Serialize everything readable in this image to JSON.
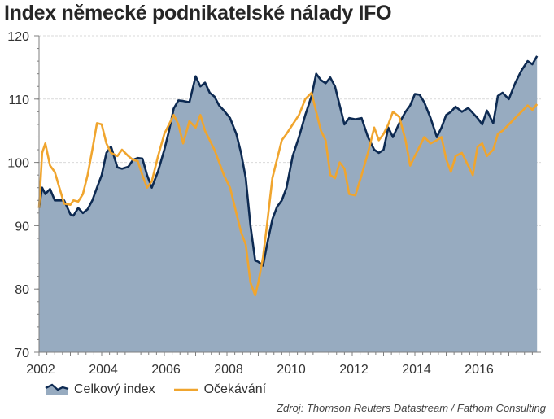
{
  "title": "Index německé podnikatelské nálady IFO",
  "source": "Zdroj: Thomson Reuters Datastream / Fathom Consulting",
  "colors": {
    "area_fill": "#97abc0",
    "total_line": "#0d2a52",
    "expect_line": "#f0a52e",
    "grid": "#d9d9d9",
    "axis": "#7f7f7f"
  },
  "legend": {
    "total": "Celkový index",
    "expect": "Očekávání"
  },
  "chart_data": {
    "type": "line",
    "title": "Index německé podnikatelské nálady IFO",
    "xlabel": "",
    "ylabel": "",
    "ylim": [
      70,
      120
    ],
    "xlim": [
      2002,
      2017.9
    ],
    "yticks": [
      70,
      80,
      90,
      100,
      110,
      120
    ],
    "xticks": [
      2002,
      2004,
      2006,
      2008,
      2010,
      2012,
      2014,
      2016
    ],
    "grid": true,
    "legend_position": "bottom-left",
    "x": [
      2002.0,
      2002.1,
      2002.2,
      2002.35,
      2002.5,
      2002.65,
      2002.8,
      2003.0,
      2003.1,
      2003.25,
      2003.4,
      2003.55,
      2003.7,
      2003.85,
      2004.0,
      2004.15,
      2004.3,
      2004.5,
      2004.65,
      2004.85,
      2005.0,
      2005.15,
      2005.3,
      2005.45,
      2005.6,
      2005.8,
      2006.0,
      2006.15,
      2006.3,
      2006.45,
      2006.6,
      2006.8,
      2007.0,
      2007.15,
      2007.3,
      2007.45,
      2007.6,
      2007.75,
      2007.9,
      2008.1,
      2008.3,
      2008.45,
      2008.6,
      2008.75,
      2008.9,
      2009.0,
      2009.15,
      2009.3,
      2009.45,
      2009.6,
      2009.75,
      2009.9,
      2010.1,
      2010.3,
      2010.5,
      2010.7,
      2010.85,
      2011.0,
      2011.15,
      2011.3,
      2011.45,
      2011.6,
      2011.75,
      2011.9,
      2012.1,
      2012.3,
      2012.5,
      2012.7,
      2012.85,
      2013.0,
      2013.15,
      2013.3,
      2013.5,
      2013.7,
      2013.85,
      2014.0,
      2014.15,
      2014.3,
      2014.5,
      2014.7,
      2014.85,
      2015.0,
      2015.15,
      2015.3,
      2015.5,
      2015.7,
      2015.85,
      2016.0,
      2016.15,
      2016.3,
      2016.5,
      2016.65,
      2016.8,
      2017.0,
      2017.2,
      2017.4,
      2017.6,
      2017.75,
      2017.9
    ],
    "series": [
      {
        "name": "Celkový index",
        "style": "area",
        "values": [
          92.8,
          96.0,
          95.0,
          95.8,
          94.0,
          94.0,
          94.0,
          91.8,
          91.6,
          92.8,
          92.0,
          92.6,
          94.0,
          96.0,
          98.0,
          101.5,
          102.5,
          99.2,
          99.0,
          99.3,
          100.4,
          100.7,
          100.6,
          98.0,
          96.0,
          98.6,
          102.0,
          105.0,
          108.5,
          109.8,
          109.7,
          109.5,
          113.6,
          112.0,
          112.6,
          111.0,
          110.4,
          109.0,
          108.2,
          107.0,
          104.5,
          101.5,
          97.5,
          90.0,
          84.5,
          84.3,
          83.7,
          87.5,
          91.0,
          93.0,
          94.0,
          96.0,
          101.0,
          104.0,
          107.5,
          110.5,
          114.0,
          113.0,
          112.5,
          113.4,
          112.0,
          109.0,
          106.0,
          107.0,
          106.8,
          107.0,
          104.0,
          102.0,
          101.5,
          102.0,
          105.5,
          104.0,
          106.2,
          108.0,
          109.0,
          110.8,
          110.7,
          109.5,
          107.0,
          104.0,
          105.5,
          107.5,
          108.0,
          108.8,
          108.0,
          108.6,
          107.8,
          107.0,
          106.0,
          108.2,
          106.2,
          110.5,
          111.0,
          110.0,
          112.5,
          114.5,
          116.0,
          115.5,
          116.8
        ]
      },
      {
        "name": "Očekávání",
        "style": "line",
        "values": [
          92.8,
          101.5,
          103.0,
          99.5,
          98.5,
          96.0,
          93.5,
          93.3,
          94.0,
          93.8,
          95.0,
          98.0,
          102.0,
          106.2,
          106.0,
          103.0,
          101.5,
          101.0,
          102.0,
          101.0,
          100.4,
          100.2,
          98.0,
          96.0,
          97.0,
          101.0,
          104.5,
          106.0,
          107.5,
          106.0,
          103.0,
          106.5,
          105.5,
          107.5,
          105.0,
          103.5,
          102.0,
          100.0,
          98.0,
          96.0,
          92.0,
          89.0,
          87.0,
          81.0,
          79.0,
          81.0,
          85.0,
          91.0,
          97.5,
          100.5,
          103.5,
          104.5,
          106.0,
          107.5,
          110.0,
          111.0,
          108.0,
          105.0,
          103.5,
          98.0,
          97.5,
          100.0,
          99.0,
          95.0,
          94.8,
          98.0,
          101.5,
          105.5,
          103.5,
          104.5,
          106.0,
          108.0,
          107.2,
          103.5,
          99.5,
          101.0,
          102.5,
          104.0,
          103.0,
          103.5,
          104.0,
          100.5,
          98.5,
          101.0,
          101.5,
          99.5,
          98.0,
          102.5,
          103.0,
          101.0,
          102.0,
          104.5,
          105.0,
          106.0,
          107.0,
          108.0,
          109.0,
          108.3,
          109.2
        ]
      }
    ]
  }
}
